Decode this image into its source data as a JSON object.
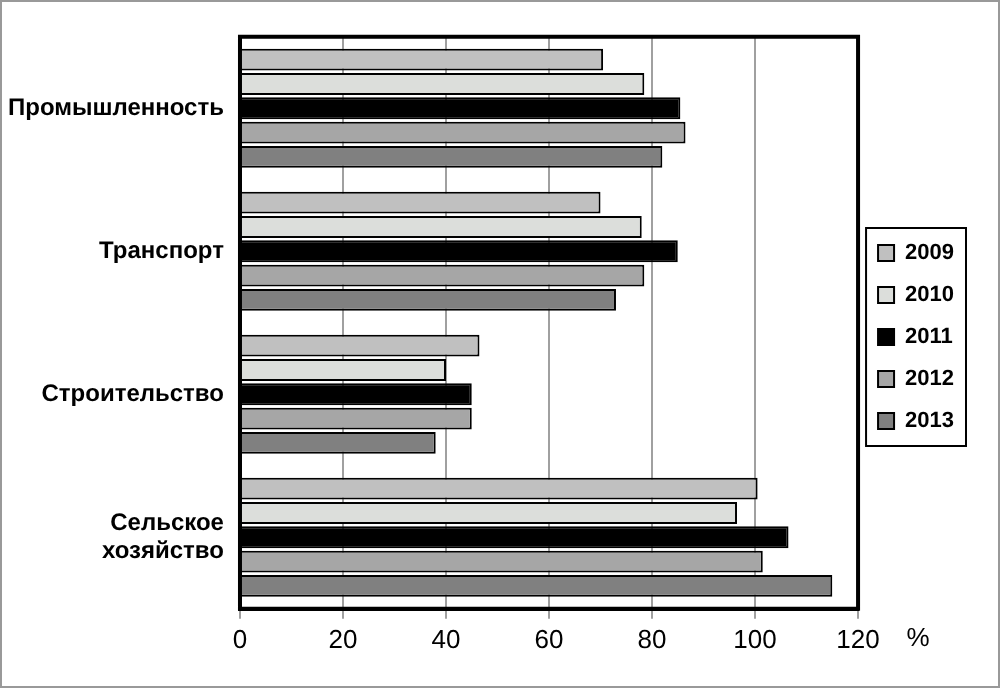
{
  "chart_data": {
    "type": "bar",
    "orientation": "horizontal",
    "xlabel": "%",
    "categories": [
      "Промышленность",
      "Транспорт",
      "Строительство",
      "Сельское хозяйство"
    ],
    "series": [
      {
        "name": "2009",
        "color": "#c0c0c0",
        "values": [
          70.5,
          70,
          46.5,
          100.5
        ]
      },
      {
        "name": "2010",
        "color": "#dcdedb",
        "values": [
          78.5,
          78,
          40,
          96.5
        ]
      },
      {
        "name": "2011",
        "color": "#000000",
        "values": [
          85.5,
          85,
          45,
          106.5
        ]
      },
      {
        "name": "2012",
        "color": "#a6a6a6",
        "values": [
          86.5,
          78.5,
          45,
          101.5
        ]
      },
      {
        "name": "2013",
        "color": "#808080",
        "values": [
          82,
          73,
          38,
          115
        ]
      }
    ],
    "xlim": [
      0,
      120
    ],
    "xticks": [
      0,
      20,
      40,
      60,
      80,
      100,
      120
    ],
    "grid": "x",
    "legend": "right"
  }
}
